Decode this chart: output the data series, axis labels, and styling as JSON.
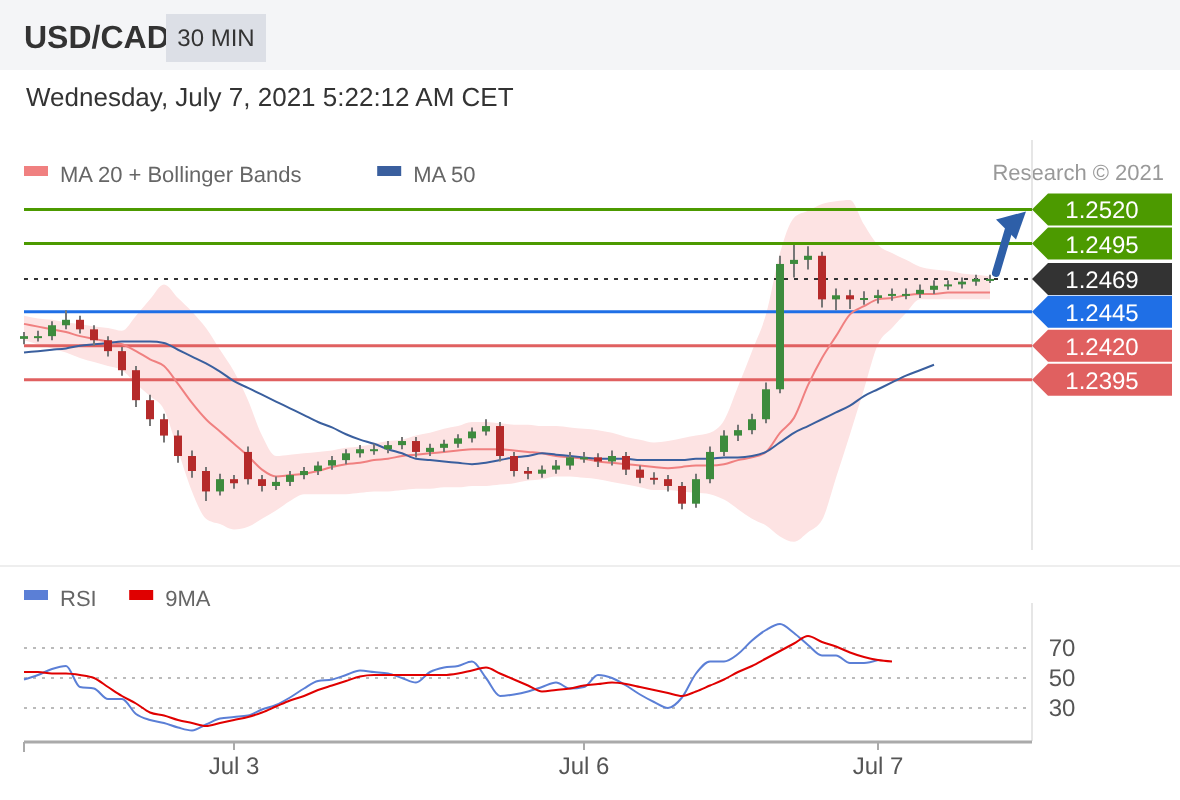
{
  "chart_data": [
    {
      "type": "candlestick",
      "title": "USD/CAD",
      "subtitle": "30 MIN",
      "annotations": [
        "Wednesday, July 7, 2021 5:22:12 AM CET",
        "Research © 2021"
      ],
      "legend": "top left",
      "tick_labels": "y",
      "ylim": [
        1.227,
        1.2571
      ],
      "yticks": [
        {
          "value": 1.252,
          "label": "1.2520"
        },
        1.2495,
        1.2469,
        1.2445,
        {
          "value": 1.242,
          "label": "1.2420"
        },
        1.2395
      ],
      "ohlc": [
        [
          1.2425,
          1.243,
          1.2421,
          1.2427
        ],
        [
          1.2427,
          1.2431,
          1.2423,
          1.2427
        ],
        [
          1.2427,
          1.2438,
          1.2424,
          1.2435
        ],
        [
          1.2435,
          1.2446,
          1.2432,
          1.2439
        ],
        [
          1.2439,
          1.2442,
          1.2429,
          1.2432
        ],
        [
          1.2432,
          1.2435,
          1.242,
          1.2424
        ],
        [
          1.2424,
          1.2427,
          1.2412,
          1.2416
        ],
        [
          1.2416,
          1.2419,
          1.2398,
          1.2402
        ],
        [
          1.2402,
          1.2405,
          1.2375,
          1.238
        ],
        [
          1.238,
          1.2384,
          1.2361,
          1.2366
        ],
        [
          1.2366,
          1.237,
          1.2349,
          1.2354
        ],
        [
          1.2354,
          1.2358,
          1.2334,
          1.2339
        ],
        [
          1.2339,
          1.2343,
          1.2323,
          1.2328
        ],
        [
          1.2328,
          1.2331,
          1.2306,
          1.2313
        ],
        [
          1.2313,
          1.2326,
          1.231,
          1.2322
        ],
        [
          1.2322,
          1.2325,
          1.2315,
          1.2319
        ],
        [
          1.2342,
          1.2346,
          1.2318,
          1.2322
        ],
        [
          1.2322,
          1.2325,
          1.2313,
          1.2317
        ],
        [
          1.2317,
          1.2324,
          1.2314,
          1.232
        ],
        [
          1.232,
          1.2328,
          1.2317,
          1.2325
        ],
        [
          1.2325,
          1.2331,
          1.2322,
          1.2328
        ],
        [
          1.2328,
          1.2335,
          1.2325,
          1.2332
        ],
        [
          1.2332,
          1.2339,
          1.2329,
          1.2336
        ],
        [
          1.2336,
          1.2344,
          1.2333,
          1.2341
        ],
        [
          1.2341,
          1.2347,
          1.2338,
          1.2344
        ],
        [
          1.2344,
          1.2348,
          1.234,
          1.2344
        ],
        [
          1.2344,
          1.235,
          1.2341,
          1.2347
        ],
        [
          1.2347,
          1.2353,
          1.2344,
          1.235
        ],
        [
          1.235,
          1.2353,
          1.2338,
          1.2342
        ],
        [
          1.2342,
          1.2348,
          1.2339,
          1.2345
        ],
        [
          1.2345,
          1.2351,
          1.2342,
          1.2348
        ],
        [
          1.2348,
          1.2355,
          1.2345,
          1.2352
        ],
        [
          1.2352,
          1.236,
          1.2349,
          1.2357
        ],
        [
          1.2357,
          1.2366,
          1.2354,
          1.2361
        ],
        [
          1.2361,
          1.2364,
          1.2335,
          1.2339
        ],
        [
          1.2339,
          1.2342,
          1.2324,
          1.2328
        ],
        [
          1.2328,
          1.2331,
          1.2322,
          1.2326
        ],
        [
          1.2326,
          1.2332,
          1.2323,
          1.2329
        ],
        [
          1.2329,
          1.2336,
          1.2326,
          1.2332
        ],
        [
          1.2332,
          1.2342,
          1.2329,
          1.2338
        ],
        [
          1.2338,
          1.2342,
          1.2334,
          1.2338
        ],
        [
          1.2338,
          1.2341,
          1.2331,
          1.2335
        ],
        [
          1.2335,
          1.2343,
          1.2332,
          1.2339
        ],
        [
          1.2339,
          1.2342,
          1.2325,
          1.2329
        ],
        [
          1.2329,
          1.2332,
          1.2319,
          1.2323
        ],
        [
          1.2323,
          1.2327,
          1.2318,
          1.2322
        ],
        [
          1.2322,
          1.2325,
          1.2313,
          1.2317
        ],
        [
          1.2317,
          1.232,
          1.23,
          1.2304
        ],
        [
          1.2304,
          1.2326,
          1.2301,
          1.2322
        ],
        [
          1.2322,
          1.2346,
          1.2319,
          1.2342
        ],
        [
          1.2342,
          1.2358,
          1.2339,
          1.2354
        ],
        [
          1.2354,
          1.2362,
          1.235,
          1.2358
        ],
        [
          1.2358,
          1.237,
          1.2355,
          1.2366
        ],
        [
          1.2366,
          1.2393,
          1.2363,
          1.2388
        ],
        [
          1.2388,
          1.2486,
          1.2385,
          1.248
        ],
        [
          1.248,
          1.2494,
          1.247,
          1.2483
        ],
        [
          1.2483,
          1.2493,
          1.2476,
          1.2486
        ],
        [
          1.2486,
          1.2489,
          1.2448,
          1.2454
        ],
        [
          1.2454,
          1.2462,
          1.2446,
          1.2457
        ],
        [
          1.2457,
          1.2461,
          1.2447,
          1.2454
        ],
        [
          1.2454,
          1.246,
          1.245,
          1.2455
        ],
        [
          1.2455,
          1.2461,
          1.2451,
          1.2457
        ],
        [
          1.2457,
          1.2462,
          1.2453,
          1.2458
        ],
        [
          1.2458,
          1.2462,
          1.2454,
          1.2458
        ],
        [
          1.2458,
          1.2465,
          1.2455,
          1.2461
        ],
        [
          1.2461,
          1.2468,
          1.2458,
          1.2464
        ],
        [
          1.2464,
          1.2468,
          1.2461,
          1.2465
        ],
        [
          1.2465,
          1.247,
          1.2462,
          1.2467
        ],
        [
          1.2467,
          1.2472,
          1.2464,
          1.2469
        ],
        [
          1.2469,
          1.2472,
          1.2466,
          1.2469
        ]
      ],
      "series": [
        {
          "type": "line",
          "name": "MA 20 + Bollinger Bands",
          "color": "#f08080",
          "values": [
            1.2436,
            1.2434,
            1.2432,
            1.243,
            1.2427,
            1.2425,
            1.2423,
            1.2421,
            1.2416,
            1.241,
            1.2405,
            1.2392,
            1.2378,
            1.2366,
            1.2357,
            1.2348,
            1.2339,
            1.2329,
            1.2324,
            1.2325,
            1.2326,
            1.2328,
            1.2331,
            1.2333,
            1.2334,
            1.2336,
            1.2337,
            1.2339,
            1.234,
            1.2341,
            1.2342,
            1.2343,
            1.2344,
            1.2344,
            1.2344,
            1.2343,
            1.2342,
            1.2341,
            1.2339,
            1.2338,
            1.2337,
            1.2335,
            1.2334,
            1.2333,
            1.2332,
            1.2331,
            1.233,
            1.2331,
            1.2332,
            1.2332,
            1.2333,
            1.2336,
            1.2338,
            1.2342,
            1.2356,
            1.2367,
            1.2391,
            1.2411,
            1.2427,
            1.2443,
            1.2449,
            1.2454,
            1.2455,
            1.2457,
            1.2458,
            1.2458,
            1.2459,
            1.2459,
            1.2459,
            1.2459
          ],
          "upper": [
            1.2442,
            1.244,
            1.2439,
            1.2437,
            1.2436,
            1.2434,
            1.2433,
            1.2431,
            1.2442,
            1.2454,
            1.2465,
            1.2455,
            1.2445,
            1.2433,
            1.2417,
            1.2401,
            1.238,
            1.2354,
            1.2339,
            1.234,
            1.2341,
            1.2342,
            1.2343,
            1.2345,
            1.2346,
            1.2348,
            1.235,
            1.2351,
            1.2354,
            1.2356,
            1.2359,
            1.2361,
            1.2364,
            1.2364,
            1.2363,
            1.2362,
            1.2362,
            1.2361,
            1.2361,
            1.236,
            1.2359,
            1.2358,
            1.2356,
            1.2353,
            1.2351,
            1.2349,
            1.235,
            1.2352,
            1.2354,
            1.2356,
            1.2365,
            1.239,
            1.2416,
            1.2443,
            1.2488,
            1.2514,
            1.2519,
            1.2524,
            1.2526,
            1.2527,
            1.2509,
            1.2494,
            1.2488,
            1.2483,
            1.2478,
            1.2476,
            1.2475,
            1.2473,
            1.2472,
            1.2471
          ],
          "lower": [
            1.2424,
            1.2421,
            1.2418,
            1.2415,
            1.2411,
            1.2408,
            1.2405,
            1.2402,
            1.2392,
            1.2383,
            1.2373,
            1.2343,
            1.2313,
            1.2293,
            1.2289,
            1.2285,
            1.2287,
            1.2293,
            1.2299,
            1.2306,
            1.2311,
            1.2311,
            1.2311,
            1.2311,
            1.2312,
            1.2313,
            1.2313,
            1.2314,
            1.2315,
            1.2315,
            1.2316,
            1.2316,
            1.2317,
            1.2317,
            1.2318,
            1.2319,
            1.2321,
            1.2322,
            1.2324,
            1.2324,
            1.2323,
            1.2322,
            1.232,
            1.2318,
            1.2316,
            1.2314,
            1.2314,
            1.2313,
            1.2312,
            1.2311,
            1.2307,
            1.23,
            1.2293,
            1.2288,
            1.228,
            1.2276,
            1.2283,
            1.2292,
            1.2323,
            1.2355,
            1.2388,
            1.2421,
            1.2433,
            1.2444,
            1.2454,
            1.2454,
            1.2454,
            1.2454,
            1.2454,
            1.2454
          ]
        },
        {
          "type": "line",
          "name": "MA 50",
          "color": "#3a5f9e",
          "values": [
            1.2415,
            1.2416,
            1.2417,
            1.2418,
            1.242,
            1.2421,
            1.2422,
            1.2423,
            1.2423,
            1.2423,
            1.2422,
            1.2417,
            1.2412,
            1.2407,
            1.2401,
            1.2394,
            1.2389,
            1.2384,
            1.2379,
            1.2374,
            1.2369,
            1.2364,
            1.236,
            1.2355,
            1.2351,
            1.2348,
            1.2344,
            1.2341,
            1.2337,
            1.2336,
            1.2335,
            1.2334,
            1.2333,
            1.2334,
            1.2336,
            1.2338,
            1.2339,
            1.2341,
            1.234,
            1.2339,
            1.2338,
            1.2337,
            1.2337,
            1.2337,
            1.2336,
            1.2336,
            1.2336,
            1.2336,
            1.2337,
            1.2337,
            1.2338,
            1.2338,
            1.2339,
            1.2342,
            1.2349,
            1.2356,
            1.2361,
            1.2366,
            1.2371,
            1.2376,
            1.2383,
            1.2388,
            1.2393,
            1.2398,
            1.2402,
            1.2406,
            null,
            null,
            null,
            null
          ]
        }
      ],
      "ref_lines": [
        {
          "axis": "y",
          "value": 1.252,
          "color": "#4c9a00"
        },
        {
          "axis": "y",
          "value": 1.2495,
          "color": "#4c9a00"
        },
        {
          "axis": "y",
          "value": 1.2469,
          "color": "#333333",
          "line_style": "dotted"
        },
        {
          "axis": "y",
          "value": 1.2445,
          "color": "#1f6fe6"
        },
        {
          "axis": "y",
          "value": 1.242,
          "color": "#e06060"
        },
        {
          "axis": "y",
          "value": 1.2395,
          "color": "#e06060"
        }
      ]
    },
    {
      "type": "line",
      "legend": "top left",
      "grid": "y",
      "ylim": [
        8,
        100
      ],
      "yticks": [
        30,
        50,
        70
      ],
      "categories": [
        null,
        null,
        null,
        null,
        null,
        null,
        null,
        null,
        null,
        null,
        null,
        null,
        null,
        null,
        null,
        "Jul 3",
        null,
        null,
        null,
        null,
        null,
        null,
        null,
        null,
        null,
        null,
        null,
        null,
        null,
        null,
        null,
        null,
        null,
        null,
        null,
        null,
        null,
        null,
        null,
        null,
        "Jul 6",
        null,
        null,
        null,
        null,
        null,
        null,
        null,
        null,
        null,
        null,
        null,
        null,
        null,
        null,
        null,
        null,
        null,
        null,
        null,
        null,
        "Jul 7",
        null,
        null,
        null,
        null,
        null,
        null,
        null,
        null
      ],
      "series": [
        {
          "name": "RSI",
          "color": "#5b7fd6",
          "values": [
            49,
            52,
            56,
            58,
            44,
            43,
            36,
            36,
            26,
            22,
            20,
            17,
            15,
            19,
            23,
            24,
            25,
            29,
            32,
            37,
            43,
            48,
            49,
            52,
            55,
            54,
            53,
            50,
            47,
            54,
            57,
            58,
            61,
            50,
            38,
            39,
            41,
            44,
            47,
            43,
            44,
            52,
            50,
            45,
            39,
            34,
            30,
            37,
            53,
            61,
            61,
            66,
            75,
            82,
            86,
            80,
            72,
            65,
            65,
            60,
            60,
            62,
            null,
            null,
            null,
            null,
            null,
            null,
            null,
            null
          ]
        },
        {
          "name": "9MA",
          "color": "#e00000",
          "values": [
            54,
            54,
            53,
            53,
            52,
            50,
            44,
            38,
            33,
            27,
            25,
            22,
            20,
            18,
            20,
            22,
            24,
            27,
            31,
            35,
            38,
            42,
            45,
            48,
            51,
            52,
            52,
            52,
            52,
            52,
            52,
            53,
            55,
            57,
            53,
            49,
            45,
            41,
            42,
            43,
            45,
            46,
            47,
            46,
            44,
            42,
            40,
            38,
            41,
            45,
            49,
            54,
            58,
            63,
            68,
            73,
            78,
            74,
            71,
            67,
            64,
            62,
            61,
            null,
            null,
            null,
            null,
            null,
            null,
            null
          ]
        }
      ]
    }
  ]
}
